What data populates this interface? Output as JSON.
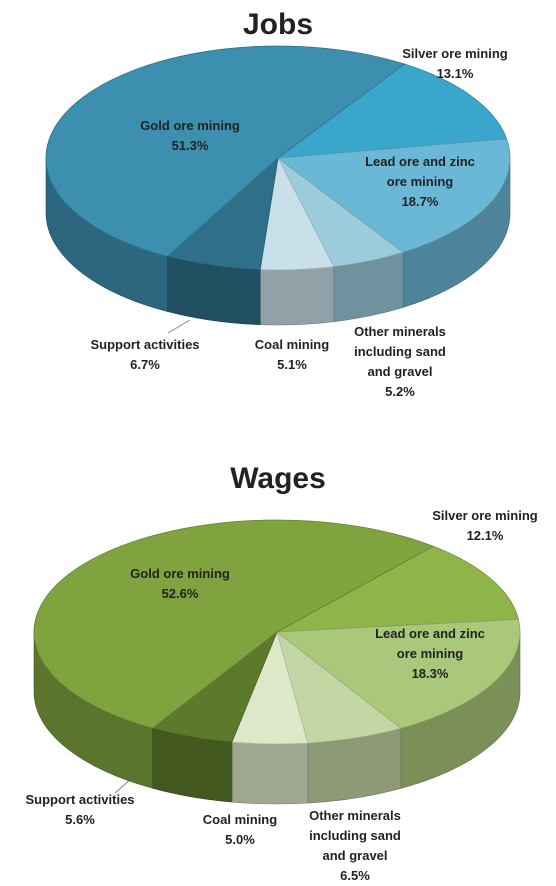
{
  "chart_data": [
    {
      "type": "pie",
      "title": "Jobs",
      "categories": [
        "Silver ore mining",
        "Lead ore and zinc\nore mining",
        "Other minerals\nincluding sand\nand gravel",
        "Coal mining",
        "Support activities",
        "Gold ore mining"
      ],
      "values": [
        13.1,
        18.7,
        5.2,
        5.1,
        6.7,
        51.3
      ],
      "value_labels": [
        "13.1%",
        "18.7%",
        "5.2%",
        "5.1%",
        "6.7%",
        "51.3%"
      ],
      "colors": [
        "#3aa6cc",
        "#6bb8d6",
        "#9ccbdc",
        "#c9e0ea",
        "#2e6f8a",
        "#3d8fb0"
      ]
    },
    {
      "type": "pie",
      "title": "Wages",
      "categories": [
        "Silver ore mining",
        "Lead ore and zinc\nore mining",
        "Other minerals\nincluding sand\nand gravel",
        "Coal mining",
        "Support activities",
        "Gold ore mining"
      ],
      "values": [
        12.1,
        18.3,
        6.5,
        5.0,
        5.6,
        52.6
      ],
      "value_labels": [
        "12.1%",
        "18.3%",
        "6.5%",
        "5.0%",
        "5.6%",
        "52.6%"
      ],
      "colors": [
        "#8db54a",
        "#a9c87a",
        "#c4d6a3",
        "#dde8c8",
        "#5c7a2b",
        "#7ea33f"
      ]
    }
  ]
}
